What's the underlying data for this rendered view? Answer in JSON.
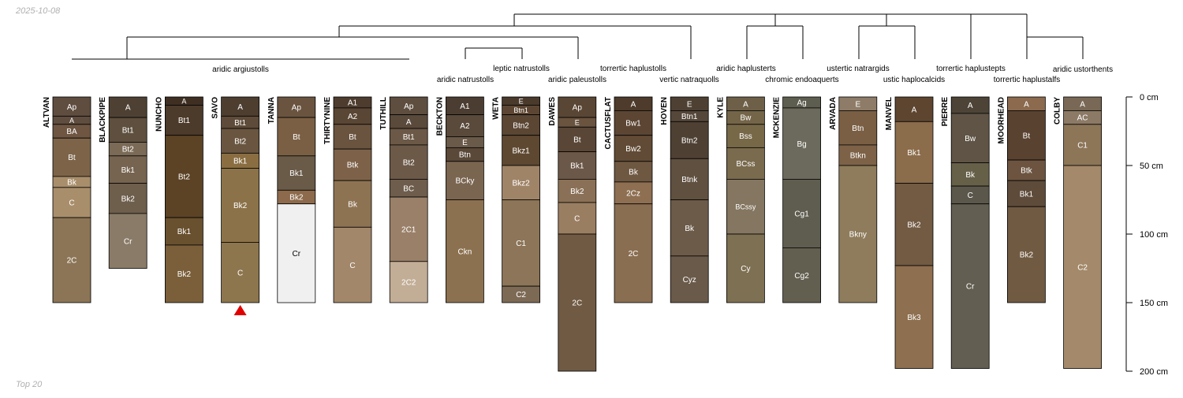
{
  "date_label": "2025-10-08",
  "footer_label": "Top 20",
  "colors": {
    "line": "#000000",
    "marker": "#e00000",
    "text_dark": "#000000",
    "text_light": "#ffffff"
  },
  "chart_data": {
    "type": "soil-profile-sketch",
    "depth_unit": "cm",
    "depth_axis": {
      "range": [
        0,
        200
      ],
      "ticks": [
        {
          "depth": 0,
          "label": "0 cm"
        },
        {
          "depth": 50,
          "label": "50 cm"
        },
        {
          "depth": 100,
          "label": "100 cm"
        },
        {
          "depth": 150,
          "label": "150 cm"
        },
        {
          "depth": 200,
          "label": "200 cm"
        }
      ]
    },
    "groups": [
      {
        "label": "aridic argiustolls",
        "members": [
          0,
          7
        ]
      },
      {
        "label": "aridic natrustolls",
        "members": [
          7,
          8
        ]
      },
      {
        "label": "leptic natrustolls",
        "members": [
          8,
          9
        ]
      },
      {
        "label": "aridic paleustolls",
        "members": [
          9,
          10
        ]
      },
      {
        "label": "torrertic haplustolls",
        "members": [
          10,
          11
        ]
      },
      {
        "label": "vertic natraquolls",
        "members": [
          11,
          12
        ]
      },
      {
        "label": "aridic haplusterts",
        "members": [
          12,
          13
        ]
      },
      {
        "label": "chromic endoaquerts",
        "members": [
          13,
          14
        ]
      },
      {
        "label": "ustertic natrargids",
        "members": [
          14,
          15
        ]
      },
      {
        "label": "ustic haplocalcids",
        "members": [
          15,
          16
        ]
      },
      {
        "label": "torrertic haplustepts",
        "members": [
          16,
          17
        ]
      },
      {
        "label": "torrertic haplustalfs",
        "members": [
          17,
          18
        ]
      },
      {
        "label": "aridic ustorthents",
        "members": [
          18,
          19
        ]
      }
    ],
    "profiles": [
      {
        "name": "ALTVAN",
        "horizons": [
          {
            "name": "Ap",
            "top": 0,
            "bottom": 14,
            "color": "#5f4d3f"
          },
          {
            "name": "A",
            "top": 14,
            "bottom": 20,
            "color": "#5f4d3f"
          },
          {
            "name": "BA",
            "top": 20,
            "bottom": 30,
            "color": "#6e5642"
          },
          {
            "name": "Bt",
            "top": 30,
            "bottom": 58,
            "color": "#7d6449"
          },
          {
            "name": "Bk",
            "top": 58,
            "bottom": 66,
            "color": "#a98e6b"
          },
          {
            "name": "C",
            "top": 66,
            "bottom": 88,
            "color": "#a98e6b"
          },
          {
            "name": "2C",
            "top": 88,
            "bottom": 150,
            "color": "#8c7556"
          }
        ]
      },
      {
        "name": "BLACKPIPE",
        "horizons": [
          {
            "name": "A",
            "top": 0,
            "bottom": 15,
            "color": "#4e4133"
          },
          {
            "name": "Bt1",
            "top": 15,
            "bottom": 33,
            "color": "#5e4f3e"
          },
          {
            "name": "Bt2",
            "top": 33,
            "bottom": 43,
            "color": "#7a6a56"
          },
          {
            "name": "Bk1",
            "top": 43,
            "bottom": 63,
            "color": "#766450"
          },
          {
            "name": "Bk2",
            "top": 63,
            "bottom": 85,
            "color": "#6e5e4c"
          },
          {
            "name": "Cr",
            "top": 85,
            "bottom": 125,
            "color": "#8a7b68"
          }
        ]
      },
      {
        "name": "NUNCHO",
        "horizons": [
          {
            "name": "A",
            "top": 0,
            "bottom": 6,
            "color": "#3f2f22"
          },
          {
            "name": "Bt1",
            "top": 6,
            "bottom": 28,
            "color": "#4c3a2a"
          },
          {
            "name": "Bt2",
            "top": 28,
            "bottom": 88,
            "color": "#5c4326"
          },
          {
            "name": "Bk1",
            "top": 88,
            "bottom": 108,
            "color": "#69502f"
          },
          {
            "name": "Bk2",
            "top": 108,
            "bottom": 150,
            "color": "#7a5f3a"
          }
        ]
      },
      {
        "name": "SAVO",
        "marker": true,
        "horizons": [
          {
            "name": "A",
            "top": 0,
            "bottom": 14,
            "color": "#4d3e30"
          },
          {
            "name": "Bt1",
            "top": 14,
            "bottom": 23,
            "color": "#5e4b39"
          },
          {
            "name": "Bt2",
            "top": 23,
            "bottom": 41,
            "color": "#6a5640"
          },
          {
            "name": "Bk1",
            "top": 41,
            "bottom": 52,
            "color": "#8a6e42"
          },
          {
            "name": "Bk2",
            "top": 52,
            "bottom": 106,
            "color": "#8c7249"
          },
          {
            "name": "C",
            "top": 106,
            "bottom": 150,
            "color": "#8d754d"
          }
        ]
      },
      {
        "name": "TANNA",
        "horizons": [
          {
            "name": "Ap",
            "top": 0,
            "bottom": 15,
            "color": "#6a5440"
          },
          {
            "name": "Bt",
            "top": 15,
            "bottom": 43,
            "color": "#7b5f44"
          },
          {
            "name": "Bk1",
            "top": 43,
            "bottom": 68,
            "color": "#6a5a48"
          },
          {
            "name": "Bk2",
            "top": 68,
            "bottom": 78,
            "color": "#8c6a4b"
          },
          {
            "name": "Cr",
            "top": 78,
            "bottom": 150,
            "color": "#f0f0f0"
          }
        ]
      },
      {
        "name": "THIRTYNINE",
        "horizons": [
          {
            "name": "A1",
            "top": 0,
            "bottom": 8,
            "color": "#4e3d2e"
          },
          {
            "name": "A2",
            "top": 8,
            "bottom": 20,
            "color": "#5a4634"
          },
          {
            "name": "Bt",
            "top": 20,
            "bottom": 38,
            "color": "#6b543f"
          },
          {
            "name": "Btk",
            "top": 38,
            "bottom": 61,
            "color": "#7d6249"
          },
          {
            "name": "Bk",
            "top": 61,
            "bottom": 95,
            "color": "#8e7353"
          },
          {
            "name": "C",
            "top": 95,
            "bottom": 150,
            "color": "#a2876a"
          }
        ]
      },
      {
        "name": "TUTHILL",
        "horizons": [
          {
            "name": "Ap",
            "top": 0,
            "bottom": 13,
            "color": "#5e4e3f"
          },
          {
            "name": "A",
            "top": 13,
            "bottom": 23,
            "color": "#5a4a3b"
          },
          {
            "name": "Bt1",
            "top": 23,
            "bottom": 35,
            "color": "#6b5846"
          },
          {
            "name": "Bt2",
            "top": 35,
            "bottom": 60,
            "color": "#6c5948"
          },
          {
            "name": "BC",
            "top": 60,
            "bottom": 73,
            "color": "#6e5d4c"
          },
          {
            "name": "2C1",
            "top": 73,
            "bottom": 120,
            "color": "#9a8068"
          },
          {
            "name": "2C2",
            "top": 120,
            "bottom": 150,
            "color": "#c2ad96"
          }
        ]
      },
      {
        "name": "BECKTON",
        "horizons": [
          {
            "name": "A1",
            "top": 0,
            "bottom": 13,
            "color": "#4b3d31"
          },
          {
            "name": "A2",
            "top": 13,
            "bottom": 29,
            "color": "#5a4a3b"
          },
          {
            "name": "E",
            "top": 29,
            "bottom": 37,
            "color": "#6a5a49"
          },
          {
            "name": "Btn",
            "top": 37,
            "bottom": 47,
            "color": "#5a4838"
          },
          {
            "name": "BCky",
            "top": 47,
            "bottom": 75,
            "color": "#7a6550"
          },
          {
            "name": "Ckn",
            "top": 75,
            "bottom": 150,
            "color": "#8c7150"
          }
        ]
      },
      {
        "name": "WETA",
        "horizons": [
          {
            "name": "E",
            "top": 0,
            "bottom": 6,
            "color": "#4a3a2c"
          },
          {
            "name": "Btn1",
            "top": 6,
            "bottom": 13,
            "color": "#5c4633"
          },
          {
            "name": "Btn2",
            "top": 13,
            "bottom": 28,
            "color": "#5b4634"
          },
          {
            "name": "Bkz1",
            "top": 28,
            "bottom": 50,
            "color": "#5e4831"
          },
          {
            "name": "Bkz2",
            "top": 50,
            "bottom": 75,
            "color": "#a08468"
          },
          {
            "name": "C1",
            "top": 75,
            "bottom": 138,
            "color": "#8c7558"
          },
          {
            "name": "C2",
            "top": 138,
            "bottom": 150,
            "color": "#7d6a55"
          }
        ]
      },
      {
        "name": "DAWES",
        "horizons": [
          {
            "name": "Ap",
            "top": 0,
            "bottom": 15,
            "color": "#5a4634"
          },
          {
            "name": "E",
            "top": 15,
            "bottom": 22,
            "color": "#6a5440"
          },
          {
            "name": "Bt",
            "top": 22,
            "bottom": 40,
            "color": "#5a4636"
          },
          {
            "name": "Bk1",
            "top": 40,
            "bottom": 60,
            "color": "#6c5848"
          },
          {
            "name": "Bk2",
            "top": 60,
            "bottom": 77,
            "color": "#8a7056"
          },
          {
            "name": "C",
            "top": 77,
            "bottom": 100,
            "color": "#9a7e62"
          },
          {
            "name": "2C",
            "top": 100,
            "bottom": 200,
            "color": "#705a43"
          }
        ]
      },
      {
        "name": "CACTUSFLAT",
        "horizons": [
          {
            "name": "A",
            "top": 0,
            "bottom": 10,
            "color": "#4e3b2b"
          },
          {
            "name": "Bw1",
            "top": 10,
            "bottom": 28,
            "color": "#5c4533"
          },
          {
            "name": "Bw2",
            "top": 28,
            "bottom": 47,
            "color": "#624b36"
          },
          {
            "name": "Bk",
            "top": 47,
            "bottom": 62,
            "color": "#6e5841"
          },
          {
            "name": "2Cz",
            "top": 62,
            "bottom": 78,
            "color": "#8e6f52"
          },
          {
            "name": "2C",
            "top": 78,
            "bottom": 150,
            "color": "#8a6e52"
          }
        ]
      },
      {
        "name": "HOVEN",
        "horizons": [
          {
            "name": "E",
            "top": 0,
            "bottom": 10,
            "color": "#4e4133"
          },
          {
            "name": "Btn1",
            "top": 10,
            "bottom": 18,
            "color": "#55473a"
          },
          {
            "name": "Btn2",
            "top": 18,
            "bottom": 45,
            "color": "#4e4033"
          },
          {
            "name": "Btnk",
            "top": 45,
            "bottom": 75,
            "color": "#605040"
          },
          {
            "name": "Bk",
            "top": 75,
            "bottom": 116,
            "color": "#6c5b49"
          },
          {
            "name": "Cyz",
            "top": 116,
            "bottom": 150,
            "color": "#6a5a4a"
          }
        ]
      },
      {
        "name": "KYLE",
        "horizons": [
          {
            "name": "A",
            "top": 0,
            "bottom": 10,
            "color": "#6e6048"
          },
          {
            "name": "Bw",
            "top": 10,
            "bottom": 20,
            "color": "#746549"
          },
          {
            "name": "Bss",
            "top": 20,
            "bottom": 37,
            "color": "#776848"
          },
          {
            "name": "BCss",
            "top": 37,
            "bottom": 60,
            "color": "#7a6b4e"
          },
          {
            "name": "BCssy",
            "top": 60,
            "bottom": 100,
            "color": "#847660"
          },
          {
            "name": "Cy",
            "top": 100,
            "bottom": 150,
            "color": "#7e7052"
          }
        ]
      },
      {
        "name": "MCKENZIE",
        "horizons": [
          {
            "name": "Ag",
            "top": 0,
            "bottom": 8,
            "color": "#5e5e50"
          },
          {
            "name": "Bg",
            "top": 8,
            "bottom": 60,
            "color": "#6c6a5c"
          },
          {
            "name": "Cg1",
            "top": 60,
            "bottom": 110,
            "color": "#5f5d50"
          },
          {
            "name": "Cg2",
            "top": 110,
            "bottom": 150,
            "color": "#625f50"
          }
        ]
      },
      {
        "name": "ARVADA",
        "horizons": [
          {
            "name": "E",
            "top": 0,
            "bottom": 10,
            "color": "#8e7c68"
          },
          {
            "name": "Btn",
            "top": 10,
            "bottom": 35,
            "color": "#7a5f44"
          },
          {
            "name": "Btkn",
            "top": 35,
            "bottom": 50,
            "color": "#7d6248"
          },
          {
            "name": "Bkny",
            "top": 50,
            "bottom": 150,
            "color": "#8e7c5c"
          }
        ]
      },
      {
        "name": "MANVEL",
        "horizons": [
          {
            "name": "A",
            "top": 0,
            "bottom": 18,
            "color": "#5e4530"
          },
          {
            "name": "Bk1",
            "top": 18,
            "bottom": 63,
            "color": "#8b6c4b"
          },
          {
            "name": "Bk2",
            "top": 63,
            "bottom": 123,
            "color": "#725a43"
          },
          {
            "name": "Bk3",
            "top": 123,
            "bottom": 198,
            "color": "#8e6f4f"
          }
        ]
      },
      {
        "name": "PIERRE",
        "horizons": [
          {
            "name": "A",
            "top": 0,
            "bottom": 12,
            "color": "#4d4437"
          },
          {
            "name": "Bw",
            "top": 12,
            "bottom": 48,
            "color": "#5f5445"
          },
          {
            "name": "Bk",
            "top": 48,
            "bottom": 65,
            "color": "#666048"
          },
          {
            "name": "C",
            "top": 65,
            "bottom": 78,
            "color": "#5b574b"
          },
          {
            "name": "Cr",
            "top": 78,
            "bottom": 198,
            "color": "#625e51"
          }
        ]
      },
      {
        "name": "MOORHEAD",
        "horizons": [
          {
            "name": "A",
            "top": 0,
            "bottom": 10,
            "color": "#8c6a4e"
          },
          {
            "name": "Bt",
            "top": 10,
            "bottom": 46,
            "color": "#5a4230"
          },
          {
            "name": "Btk",
            "top": 46,
            "bottom": 61,
            "color": "#6c5441"
          },
          {
            "name": "Bk1",
            "top": 61,
            "bottom": 80,
            "color": "#5e4b3a"
          },
          {
            "name": "Bk2",
            "top": 80,
            "bottom": 150,
            "color": "#705a42"
          }
        ]
      },
      {
        "name": "COLBY",
        "horizons": [
          {
            "name": "A",
            "top": 0,
            "bottom": 10,
            "color": "#786855"
          },
          {
            "name": "AC",
            "top": 10,
            "bottom": 20,
            "color": "#8c7a66"
          },
          {
            "name": "C1",
            "top": 20,
            "bottom": 50,
            "color": "#8d7558"
          },
          {
            "name": "C2",
            "top": 50,
            "bottom": 198,
            "color": "#a4896a"
          }
        ]
      }
    ]
  }
}
